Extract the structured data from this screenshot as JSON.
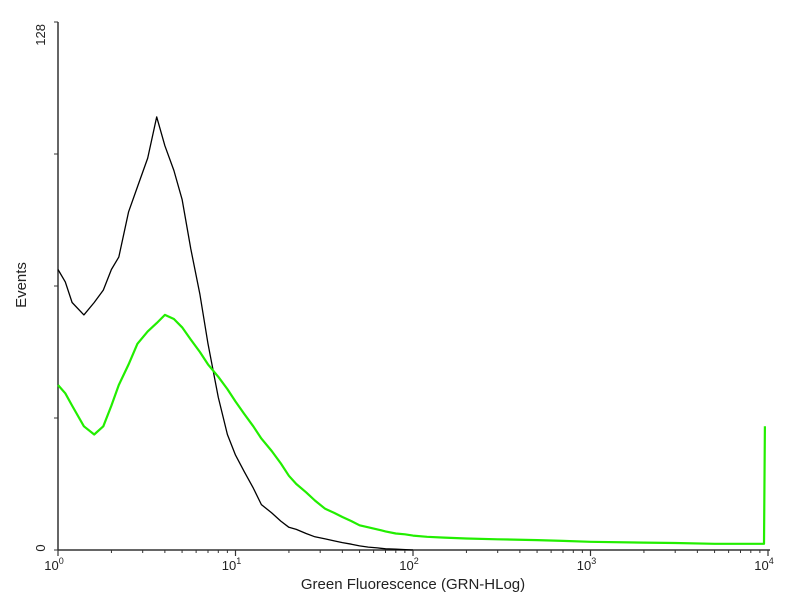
{
  "chart_data": {
    "type": "line",
    "title": "",
    "xlabel": "Green Fluorescence (GRN-HLog)",
    "ylabel": "Events",
    "x_scale": "log",
    "xlim": [
      1,
      10000
    ],
    "ylim": [
      0,
      128
    ],
    "grid": false,
    "legend": "none",
    "x_ticks": [
      {
        "value": 1,
        "base": "10",
        "exp": "0"
      },
      {
        "value": 10,
        "base": "10",
        "exp": "1"
      },
      {
        "value": 100,
        "base": "10",
        "exp": "2"
      },
      {
        "value": 1000,
        "base": "10",
        "exp": "3"
      },
      {
        "value": 10000,
        "base": "10",
        "exp": "4"
      }
    ],
    "y_ticks": [
      {
        "value": 0,
        "label": "0"
      },
      {
        "value": 128,
        "label": "128"
      }
    ],
    "series": [
      {
        "color": "#000000",
        "x": [
          1,
          1.1,
          1.2,
          1.4,
          1.6,
          1.8,
          2,
          2.2,
          2.5,
          2.8,
          3.2,
          3.6,
          4,
          4.5,
          5,
          5.6,
          6.3,
          7,
          8,
          9,
          10,
          11.2,
          12.6,
          14,
          16,
          18,
          20,
          22,
          25,
          28,
          32,
          36,
          40,
          45,
          50,
          56,
          63,
          70,
          80,
          100
        ],
        "y": [
          68,
          65,
          60,
          57,
          60,
          63,
          68,
          71,
          82,
          88,
          95,
          105,
          98,
          92,
          85,
          73,
          62,
          50,
          37,
          28,
          23,
          19,
          15,
          11,
          9,
          7,
          5.5,
          5,
          4,
          3.2,
          2.7,
          2.2,
          1.8,
          1.4,
          1,
          0.7,
          0.5,
          0.3,
          0.2,
          0
        ]
      },
      {
        "color": "#22ee00",
        "x": [
          1,
          1.1,
          1.2,
          1.4,
          1.6,
          1.8,
          2,
          2.2,
          2.5,
          2.8,
          3.2,
          3.6,
          4,
          4.5,
          5,
          5.6,
          6.3,
          7,
          8,
          9,
          10,
          11.2,
          12.6,
          14,
          16,
          18,
          20,
          22,
          25,
          28,
          32,
          36,
          40,
          45,
          50,
          56,
          63,
          70,
          80,
          90,
          100,
          120,
          150,
          200,
          300,
          500,
          700,
          1000,
          2000,
          3000,
          5000,
          7000,
          9500,
          9600
        ],
        "y": [
          40,
          38,
          35,
          30,
          28,
          30,
          35,
          40,
          45,
          50,
          53,
          55,
          57,
          56,
          54,
          51,
          48,
          45,
          42,
          39,
          36,
          33,
          30,
          27,
          24,
          21,
          18,
          16,
          14,
          12,
          10,
          9,
          8,
          7,
          6,
          5.5,
          5,
          4.5,
          4,
          3.8,
          3.5,
          3.2,
          3,
          2.8,
          2.6,
          2.4,
          2.2,
          2,
          1.8,
          1.7,
          1.5,
          1.5,
          1.5,
          30
        ]
      }
    ]
  }
}
